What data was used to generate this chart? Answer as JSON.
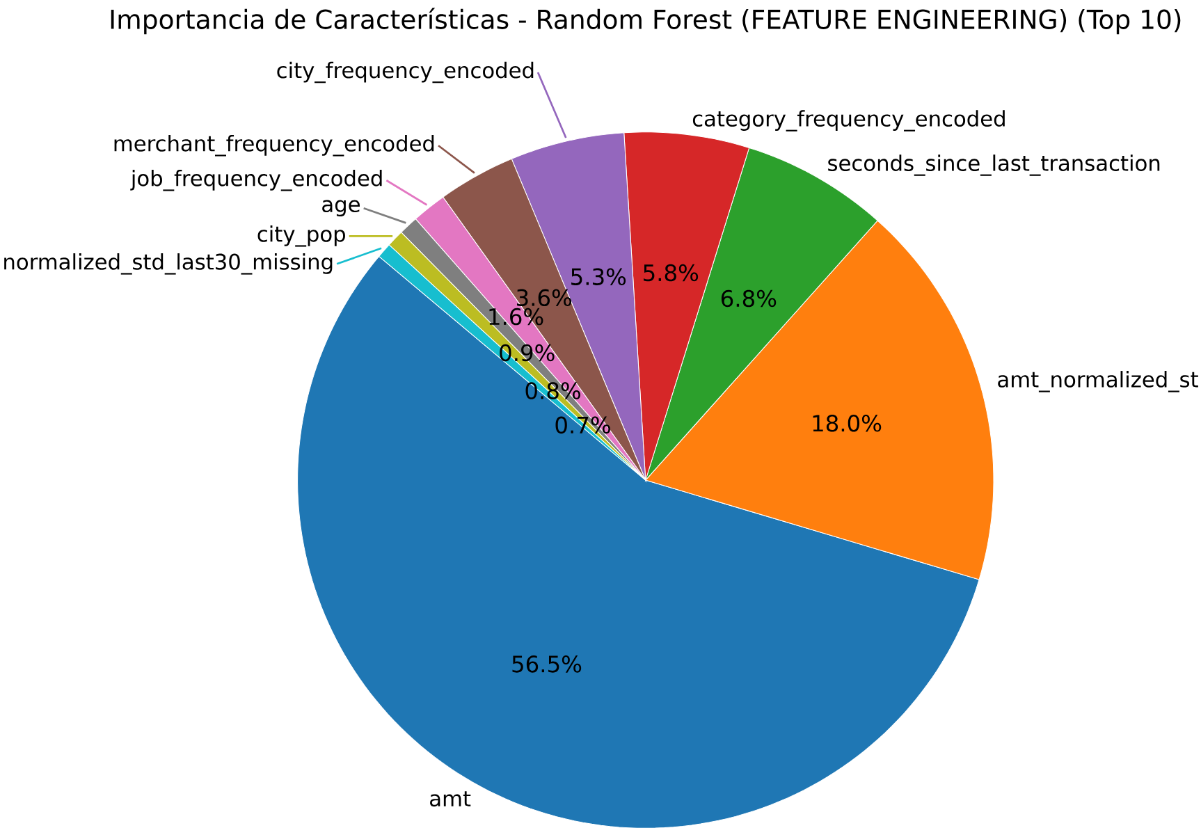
{
  "chart_data": {
    "type": "pie",
    "title": "Importancia de Características - Random Forest (FEATURE ENGINEERING) (Top 10)",
    "categories": [
      "amt",
      "amt_normalized_st",
      "seconds_since_last_transaction",
      "category_frequency_encoded",
      "city_frequency_encoded",
      "merchant_frequency_encoded",
      "job_frequency_encoded",
      "age",
      "city_pop",
      "normalized_std_last30_missing"
    ],
    "values": [
      56.5,
      18.0,
      6.8,
      5.8,
      5.3,
      3.6,
      1.6,
      0.9,
      0.8,
      0.7
    ],
    "colors": [
      "#1f77b4",
      "#ff7f0e",
      "#2ca02c",
      "#d62728",
      "#9467bd",
      "#8c564b",
      "#e377c2",
      "#7f7f7f",
      "#bcbd22",
      "#17becf"
    ],
    "value_labels": [
      "56.5%",
      "18.0%",
      "6.8%",
      "5.8%",
      "5.3%",
      "3.6%",
      "1.6%",
      "0.9%",
      "0.8%",
      "0.7%"
    ]
  }
}
